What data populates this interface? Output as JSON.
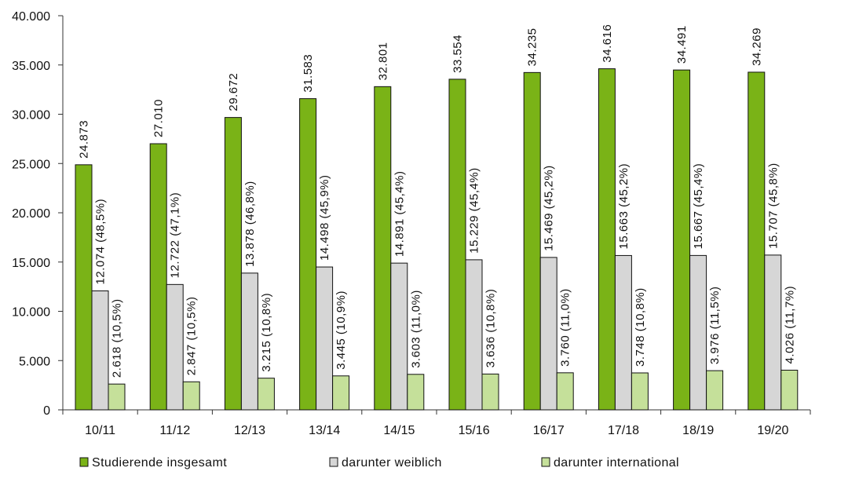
{
  "chart_data": {
    "type": "bar",
    "categories": [
      "10/11",
      "11/12",
      "12/13",
      "13/14",
      "14/15",
      "15/16",
      "16/17",
      "17/18",
      "18/19",
      "19/20"
    ],
    "series": [
      {
        "name": "Studierende insgesamt",
        "color": "#7ab317",
        "values": [
          24873,
          27010,
          29672,
          31583,
          32801,
          33554,
          34235,
          34616,
          34491,
          34269
        ],
        "labels": [
          "24.873",
          "27.010",
          "29.672",
          "31.583",
          "32.801",
          "33.554",
          "34.235",
          "34.616",
          "34.491",
          "34.269"
        ]
      },
      {
        "name": "darunter weiblich",
        "color": "#d6d6d6",
        "values": [
          12074,
          12722,
          13878,
          14498,
          14891,
          15229,
          15469,
          15663,
          15667,
          15707
        ],
        "labels": [
          "12.074 (48,5%)",
          "12.722 (47,1%)",
          "13.878 (46,8%)",
          "14.498 (45,9%)",
          "14.891 (45,4%)",
          "15.229 (45,4%)",
          "15.469 (45,2%)",
          "15.663 (45,2%)",
          "15.667 (45,4%)",
          "15.707 (45,8%)"
        ]
      },
      {
        "name": "darunter international",
        "color": "#c5e09a",
        "values": [
          2618,
          2847,
          3215,
          3445,
          3603,
          3636,
          3760,
          3748,
          3976,
          4026
        ],
        "labels": [
          "2.618 (10,5%)",
          "2.847 (10,5%)",
          "3.215 (10,8%)",
          "3.445 (10,9%)",
          "3.603 (11,0%)",
          "3.636 (10,8%)",
          "3.760 (11,0%)",
          "3.748 (10,8%)",
          "3.976 (11,5%)",
          "4.026 (11,7%)"
        ]
      }
    ],
    "ylim": [
      0,
      40000
    ],
    "yticks": [
      0,
      5000,
      10000,
      15000,
      20000,
      25000,
      30000,
      35000,
      40000
    ],
    "ytick_labels": [
      "0",
      "5.000",
      "10.000",
      "15.000",
      "20.000",
      "25.000",
      "30.000",
      "35.000",
      "40.000"
    ],
    "grid": false,
    "legend_position": "bottom",
    "title": "",
    "xlabel": "",
    "ylabel": ""
  }
}
